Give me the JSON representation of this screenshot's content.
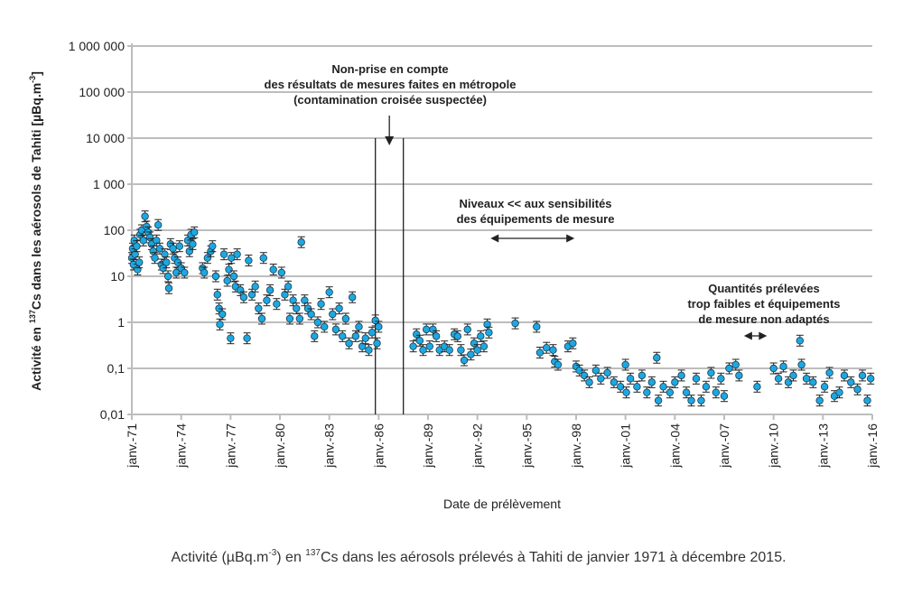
{
  "chart_data": {
    "type": "scatter",
    "title": "",
    "xlabel": "Date de prélèvement",
    "ylabel": {
      "pre": "Activité en ",
      "sup": "137",
      "mid": "Cs dans les aérosols de Tahiti [µBq.m",
      "sup2": "-3",
      "post": "]"
    },
    "yscale": "log",
    "ylim": [
      0.01,
      1000000
    ],
    "xlim": [
      1971,
      2016
    ],
    "grid": "horizontal",
    "legend": "none",
    "marker_color": "#1ea7e1",
    "error_bars": true,
    "y_tick_labels": [
      "0,01",
      "0,1",
      "1",
      "10",
      "100",
      "1 000",
      "10 000",
      "100 000",
      "1 000 000"
    ],
    "x_tick_labels": [
      "janv.-71",
      "janv.-74",
      "janv.-77",
      "janv.-80",
      "janv.-83",
      "janv.-86",
      "janv.-89",
      "janv.-92",
      "janv.-95",
      "janv.-98",
      "janv.-01",
      "janv.-04",
      "janv.-07",
      "janv.-10",
      "janv.-13",
      "janv.-16"
    ],
    "points": [
      [
        1971.0,
        25
      ],
      [
        1971.05,
        40
      ],
      [
        1971.1,
        18
      ],
      [
        1971.15,
        60
      ],
      [
        1971.2,
        30
      ],
      [
        1971.3,
        45
      ],
      [
        1971.35,
        14
      ],
      [
        1971.45,
        20
      ],
      [
        1971.5,
        80
      ],
      [
        1971.6,
        100
      ],
      [
        1971.7,
        60
      ],
      [
        1971.8,
        200
      ],
      [
        1971.9,
        120
      ],
      [
        1972.0,
        90
      ],
      [
        1972.1,
        70
      ],
      [
        1972.2,
        50
      ],
      [
        1972.3,
        35
      ],
      [
        1972.4,
        25
      ],
      [
        1972.5,
        60
      ],
      [
        1972.6,
        130
      ],
      [
        1972.7,
        40
      ],
      [
        1972.8,
        18
      ],
      [
        1972.9,
        15
      ],
      [
        1973.0,
        30
      ],
      [
        1973.1,
        20
      ],
      [
        1973.2,
        10
      ],
      [
        1973.25,
        5.5
      ],
      [
        1973.35,
        50
      ],
      [
        1973.5,
        40
      ],
      [
        1973.6,
        25
      ],
      [
        1973.7,
        12
      ],
      [
        1973.8,
        20
      ],
      [
        1973.9,
        45
      ],
      [
        1974.0,
        15
      ],
      [
        1974.2,
        12
      ],
      [
        1974.4,
        60
      ],
      [
        1974.5,
        35
      ],
      [
        1974.6,
        80
      ],
      [
        1974.7,
        50
      ],
      [
        1974.8,
        90
      ],
      [
        1975.3,
        15
      ],
      [
        1975.4,
        12
      ],
      [
        1975.6,
        25
      ],
      [
        1975.8,
        35
      ],
      [
        1975.9,
        45
      ],
      [
        1976.1,
        10
      ],
      [
        1976.2,
        4
      ],
      [
        1976.3,
        2
      ],
      [
        1976.35,
        0.9
      ],
      [
        1976.5,
        1.5
      ],
      [
        1976.6,
        30
      ],
      [
        1976.8,
        8
      ],
      [
        1976.9,
        14
      ],
      [
        1977.0,
        0.45
      ],
      [
        1977.05,
        25
      ],
      [
        1977.2,
        10
      ],
      [
        1977.3,
        6
      ],
      [
        1977.4,
        30
      ],
      [
        1977.6,
        5
      ],
      [
        1977.8,
        3.5
      ],
      [
        1978.0,
        0.45
      ],
      [
        1978.1,
        22
      ],
      [
        1978.3,
        4
      ],
      [
        1978.5,
        6
      ],
      [
        1978.7,
        2
      ],
      [
        1978.9,
        1.2
      ],
      [
        1979.0,
        25
      ],
      [
        1979.2,
        3
      ],
      [
        1979.4,
        5
      ],
      [
        1979.6,
        14
      ],
      [
        1979.8,
        2.5
      ],
      [
        1980.1,
        12
      ],
      [
        1980.3,
        4
      ],
      [
        1980.5,
        6
      ],
      [
        1980.6,
        1.2
      ],
      [
        1980.8,
        3
      ],
      [
        1981.0,
        2
      ],
      [
        1981.2,
        1.2
      ],
      [
        1981.3,
        55
      ],
      [
        1981.5,
        3
      ],
      [
        1981.7,
        2
      ],
      [
        1981.9,
        1.5
      ],
      [
        1982.1,
        0.5
      ],
      [
        1982.3,
        1
      ],
      [
        1982.5,
        2.5
      ],
      [
        1982.7,
        0.8
      ],
      [
        1983.0,
        4.5
      ],
      [
        1983.2,
        1.5
      ],
      [
        1983.4,
        0.7
      ],
      [
        1983.6,
        2
      ],
      [
        1983.8,
        0.5
      ],
      [
        1984.0,
        1.2
      ],
      [
        1984.2,
        0.35
      ],
      [
        1984.4,
        3.5
      ],
      [
        1984.6,
        0.5
      ],
      [
        1984.8,
        0.8
      ],
      [
        1985.0,
        0.3
      ],
      [
        1985.2,
        0.45
      ],
      [
        1985.4,
        0.25
      ],
      [
        1985.6,
        0.6
      ],
      [
        1985.8,
        1.1
      ],
      [
        1985.9,
        0.35
      ],
      [
        1986.0,
        0.8
      ],
      [
        1988.1,
        0.3
      ],
      [
        1988.3,
        0.55
      ],
      [
        1988.5,
        0.4
      ],
      [
        1988.7,
        0.25
      ],
      [
        1988.9,
        0.7
      ],
      [
        1989.1,
        0.3
      ],
      [
        1989.3,
        0.7
      ],
      [
        1989.5,
        0.5
      ],
      [
        1989.7,
        0.25
      ],
      [
        1990.0,
        0.3
      ],
      [
        1990.3,
        0.25
      ],
      [
        1990.6,
        0.55
      ],
      [
        1990.8,
        0.5
      ],
      [
        1991.0,
        0.25
      ],
      [
        1991.2,
        0.15
      ],
      [
        1991.4,
        0.7
      ],
      [
        1991.6,
        0.2
      ],
      [
        1991.8,
        0.35
      ],
      [
        1992.0,
        0.25
      ],
      [
        1992.2,
        0.5
      ],
      [
        1992.4,
        0.3
      ],
      [
        1992.6,
        0.9
      ],
      [
        1992.7,
        0.6
      ],
      [
        1994.3,
        0.95
      ],
      [
        1995.6,
        0.8
      ],
      [
        1995.8,
        0.22
      ],
      [
        1996.2,
        0.28
      ],
      [
        1996.6,
        0.25
      ],
      [
        1996.7,
        0.14
      ],
      [
        1996.9,
        0.12
      ],
      [
        1997.5,
        0.3
      ],
      [
        1997.8,
        0.35
      ],
      [
        1998.0,
        0.11
      ],
      [
        1998.2,
        0.09
      ],
      [
        1998.5,
        0.07
      ],
      [
        1998.8,
        0.05
      ],
      [
        1999.2,
        0.09
      ],
      [
        1999.5,
        0.06
      ],
      [
        1999.9,
        0.08
      ],
      [
        2000.3,
        0.05
      ],
      [
        2000.7,
        0.04
      ],
      [
        2001.0,
        0.12
      ],
      [
        2001.05,
        0.03
      ],
      [
        2001.3,
        0.06
      ],
      [
        2001.7,
        0.04
      ],
      [
        2002.0,
        0.07
      ],
      [
        2002.3,
        0.03
      ],
      [
        2002.6,
        0.05
      ],
      [
        2002.9,
        0.17
      ],
      [
        2003.0,
        0.02
      ],
      [
        2003.3,
        0.04
      ],
      [
        2003.7,
        0.03
      ],
      [
        2004.0,
        0.05
      ],
      [
        2004.4,
        0.07
      ],
      [
        2004.7,
        0.03
      ],
      [
        2005.0,
        0.02
      ],
      [
        2005.3,
        0.06
      ],
      [
        2005.6,
        0.02
      ],
      [
        2005.9,
        0.04
      ],
      [
        2006.2,
        0.08
      ],
      [
        2006.5,
        0.03
      ],
      [
        2006.8,
        0.06
      ],
      [
        2007.0,
        0.025
      ],
      [
        2007.3,
        0.1
      ],
      [
        2007.7,
        0.12
      ],
      [
        2007.9,
        0.07
      ],
      [
        2009.0,
        0.04
      ],
      [
        2010.0,
        0.1
      ],
      [
        2010.3,
        0.06
      ],
      [
        2010.6,
        0.11
      ],
      [
        2010.9,
        0.05
      ],
      [
        2011.2,
        0.07
      ],
      [
        2011.6,
        0.4
      ],
      [
        2011.7,
        0.12
      ],
      [
        2012.0,
        0.06
      ],
      [
        2012.4,
        0.05
      ],
      [
        2012.8,
        0.02
      ],
      [
        2013.1,
        0.04
      ],
      [
        2013.4,
        0.08
      ],
      [
        2013.7,
        0.025
      ],
      [
        2014.0,
        0.03
      ],
      [
        2014.3,
        0.07
      ],
      [
        2014.7,
        0.05
      ],
      [
        2015.1,
        0.035
      ],
      [
        2015.4,
        0.07
      ],
      [
        2015.7,
        0.02
      ],
      [
        2015.9,
        0.06
      ]
    ],
    "annotations": {
      "excluded": {
        "lines": [
          "Non-prise en compte",
          "des résultats de mesures faites en métropole",
          "(contamination croisée suspectée)"
        ],
        "x_range": [
          1985.8,
          1987.5
        ]
      },
      "low_levels": {
        "lines": [
          "Niveaux << aux sensibilités",
          "des équipements de mesure"
        ],
        "x_range": [
          1992.8,
          1997.9
        ]
      },
      "small_samples": {
        "lines": [
          "Quantités prélevées",
          "trop faibles et équipements",
          "de mesure non adaptés"
        ],
        "x_range": [
          2008.2,
          2009.6
        ]
      }
    }
  },
  "caption": {
    "pre": "Activité (µBq.m",
    "sup": "-3",
    "mid": ") en ",
    "sup2": "137",
    "post": "Cs dans les aérosols prélevés à Tahiti de janvier 1971 à décembre 2015."
  }
}
